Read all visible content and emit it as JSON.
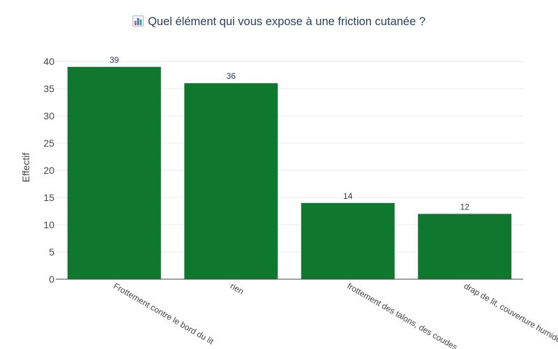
{
  "chart_data": {
    "type": "bar",
    "title": "Quel élément qui vous expose à une friction cutanée ?",
    "title_icon": "bar-chart-icon",
    "xlabel": "",
    "ylabel": "Effectif",
    "categories": [
      "Frottement contre le bord du lit",
      "rien",
      "frottement des talons, des coudes",
      "drap de lit, couverture humide"
    ],
    "values": [
      39,
      36,
      14,
      12
    ],
    "data_labels": [
      "39",
      "36",
      "14",
      "12"
    ],
    "ylim": [
      0,
      42
    ],
    "yticks": [
      0,
      5,
      10,
      15,
      20,
      25,
      30,
      35,
      40
    ],
    "grid": true,
    "legend": "none",
    "colors": {
      "bar": "#0f772e",
      "text": "#2a3f5f",
      "tick_text": "#444444",
      "grid": "#e6e9ee",
      "axis": "#444444"
    }
  }
}
